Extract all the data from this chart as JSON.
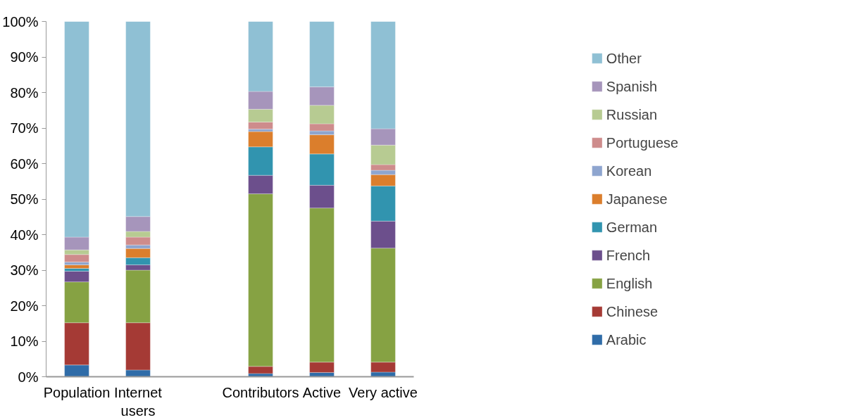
{
  "chart_data": {
    "type": "bar",
    "stacked": true,
    "categories": [
      "Population",
      "Internet users",
      null,
      "Contributors",
      "Active",
      "Very active"
    ],
    "series": [
      {
        "name": "Arabic",
        "color": "#2f6ca8",
        "values": [
          3.3,
          1.9,
          null,
          0.9,
          1.2,
          1.3
        ]
      },
      {
        "name": "Chinese",
        "color": "#a53a35",
        "values": [
          11.9,
          13.3,
          null,
          2.0,
          2.9,
          2.8
        ]
      },
      {
        "name": "English",
        "color": "#86a243",
        "values": [
          11.5,
          14.8,
          null,
          48.6,
          43.4,
          32.1
        ]
      },
      {
        "name": "French",
        "color": "#6c4f8c",
        "values": [
          3.0,
          1.5,
          null,
          5.2,
          6.4,
          7.6
        ]
      },
      {
        "name": "German",
        "color": "#3194af",
        "values": [
          0.8,
          2.0,
          null,
          8.0,
          8.8,
          9.9
        ]
      },
      {
        "name": "Japanese",
        "color": "#db7e2c",
        "values": [
          1.0,
          2.6,
          null,
          4.3,
          5.4,
          3.2
        ]
      },
      {
        "name": "Korean",
        "color": "#8ea5cf",
        "values": [
          0.8,
          1.0,
          null,
          0.7,
          1.1,
          1.2
        ]
      },
      {
        "name": "Portuguese",
        "color": "#ce8c8c",
        "values": [
          2.1,
          2.2,
          null,
          2.0,
          2.0,
          1.6
        ]
      },
      {
        "name": "Russian",
        "color": "#b7cb92",
        "values": [
          1.3,
          1.6,
          null,
          3.6,
          5.2,
          5.5
        ]
      },
      {
        "name": "Spanish",
        "color": "#a695bb",
        "values": [
          3.6,
          4.2,
          null,
          5.0,
          5.2,
          4.6
        ]
      },
      {
        "name": "Other",
        "color": "#8fc0d4",
        "values": [
          60.7,
          54.9,
          null,
          19.7,
          18.4,
          30.2
        ]
      }
    ],
    "ylim": [
      0,
      100
    ],
    "yticks": [
      {
        "value": 0,
        "label": "0%"
      },
      {
        "value": 10,
        "label": "10%"
      },
      {
        "value": 20,
        "label": "20%"
      },
      {
        "value": 30,
        "label": "30%"
      },
      {
        "value": 40,
        "label": "40%"
      },
      {
        "value": 50,
        "label": "50%"
      },
      {
        "value": 60,
        "label": "60%"
      },
      {
        "value": 70,
        "label": "70%"
      },
      {
        "value": 80,
        "label": "80%"
      },
      {
        "value": 90,
        "label": "90%"
      },
      {
        "value": 100,
        "label": "100%"
      }
    ],
    "grid": false,
    "legend": "right"
  }
}
